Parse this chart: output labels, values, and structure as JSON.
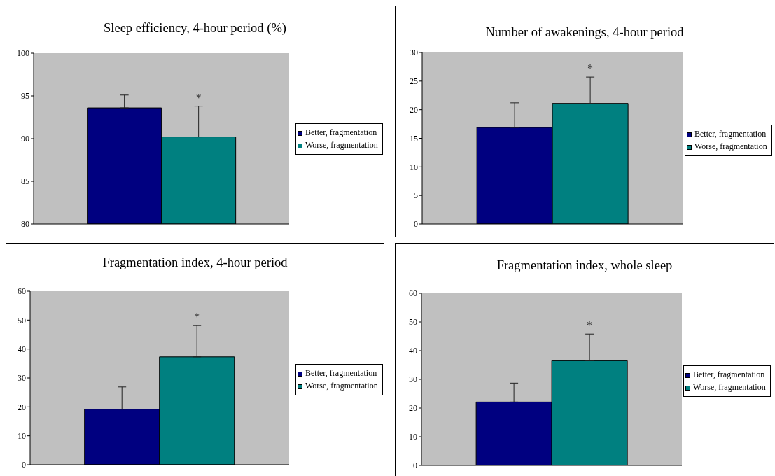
{
  "chart_data": [
    {
      "type": "bar",
      "title": "Sleep efficiency, 4-hour period (%)",
      "categories": [
        null
      ],
      "series": [
        {
          "name": "Better, fragmentation",
          "color": "#000080",
          "values": [
            93.6
          ],
          "errors": [
            [
              93.6,
              95.1
            ]
          ]
        },
        {
          "name": "Worse, fragmentation",
          "color": "#008080",
          "values": [
            90.2
          ],
          "errors": [
            [
              90.2,
              93.8
            ]
          ]
        }
      ],
      "ylim": [
        80,
        100
      ],
      "yticks": [
        80,
        85,
        90,
        95,
        100
      ],
      "legend": "right",
      "annotations": [
        "*"
      ]
    },
    {
      "type": "bar",
      "title": "Number of awakenings, 4-hour period",
      "categories": [
        null
      ],
      "series": [
        {
          "name": "Better, fragmentation",
          "color": "#000080",
          "values": [
            16.9
          ],
          "errors": [
            [
              16.9,
              21.2
            ]
          ]
        },
        {
          "name": "Worse, fragmentation",
          "color": "#008080",
          "values": [
            21.1
          ],
          "errors": [
            [
              21.1,
              25.7
            ]
          ]
        }
      ],
      "ylim": [
        0,
        30
      ],
      "yticks": [
        0,
        5,
        10,
        15,
        20,
        25,
        30
      ],
      "legend": "right",
      "annotations": [
        "*"
      ]
    },
    {
      "type": "bar",
      "title": "Fragmentation index, 4-hour period",
      "categories": [
        null
      ],
      "series": [
        {
          "name": "Better, fragmentation",
          "color": "#000080",
          "values": [
            19.2
          ],
          "errors": [
            [
              19.2,
              26.9
            ]
          ]
        },
        {
          "name": "Worse, fragmentation",
          "color": "#008080",
          "values": [
            37.3
          ],
          "errors": [
            [
              37.3,
              48.1
            ]
          ]
        }
      ],
      "ylim": [
        0,
        60
      ],
      "yticks": [
        0,
        10,
        20,
        30,
        40,
        50,
        60
      ],
      "legend": "right",
      "annotations": [
        "*"
      ]
    },
    {
      "type": "bar",
      "title": "Fragmentation index, whole sleep",
      "categories": [
        null
      ],
      "series": [
        {
          "name": "Better, fragmentation",
          "color": "#000080",
          "values": [
            22.1
          ],
          "errors": [
            [
              22.1,
              28.7
            ]
          ]
        },
        {
          "name": "Worse, fragmentation",
          "color": "#008080",
          "values": [
            36.5
          ],
          "errors": [
            [
              36.5,
              45.8
            ]
          ]
        }
      ],
      "ylim": [
        0,
        60
      ],
      "yticks": [
        0,
        10,
        20,
        30,
        40,
        50,
        60
      ],
      "legend": "right",
      "annotations": [
        "*"
      ]
    }
  ]
}
